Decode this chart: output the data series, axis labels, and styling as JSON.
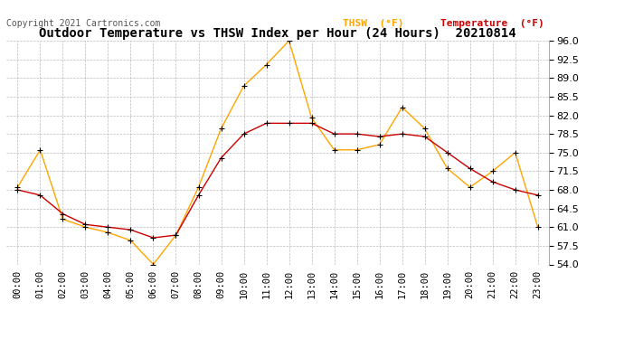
{
  "title": "Outdoor Temperature vs THSW Index per Hour (24 Hours)  20210814",
  "copyright": "Copyright 2021 Cartronics.com",
  "hours": [
    "00:00",
    "01:00",
    "02:00",
    "03:00",
    "04:00",
    "05:00",
    "06:00",
    "07:00",
    "08:00",
    "09:00",
    "10:00",
    "11:00",
    "12:00",
    "13:00",
    "14:00",
    "15:00",
    "16:00",
    "17:00",
    "18:00",
    "19:00",
    "20:00",
    "21:00",
    "22:00",
    "23:00"
  ],
  "thsw": [
    68.5,
    75.5,
    62.5,
    61.0,
    60.0,
    58.5,
    54.0,
    59.5,
    68.5,
    79.5,
    87.5,
    91.5,
    96.0,
    81.5,
    75.5,
    75.5,
    76.5,
    83.5,
    79.5,
    72.0,
    68.5,
    71.5,
    75.0,
    61.0
  ],
  "temperature": [
    68.0,
    67.0,
    63.5,
    61.5,
    61.0,
    60.5,
    59.0,
    59.5,
    67.0,
    74.0,
    78.5,
    80.5,
    80.5,
    80.5,
    78.5,
    78.5,
    78.0,
    78.5,
    78.0,
    75.0,
    72.0,
    69.5,
    68.0,
    67.0
  ],
  "thsw_color": "#FFA500",
  "temp_color": "#CC0000",
  "marker": "+",
  "marker_color": "#000000",
  "ylim": [
    54.0,
    96.0
  ],
  "yticks": [
    54.0,
    57.5,
    61.0,
    64.5,
    68.0,
    71.5,
    75.0,
    78.5,
    82.0,
    85.5,
    89.0,
    92.5,
    96.0
  ],
  "grid_color": "#bbbbbb",
  "bg_color": "#ffffff",
  "title_fontsize": 10,
  "copyright_fontsize": 7,
  "tick_fontsize": 7.5,
  "ytick_fontsize": 8
}
